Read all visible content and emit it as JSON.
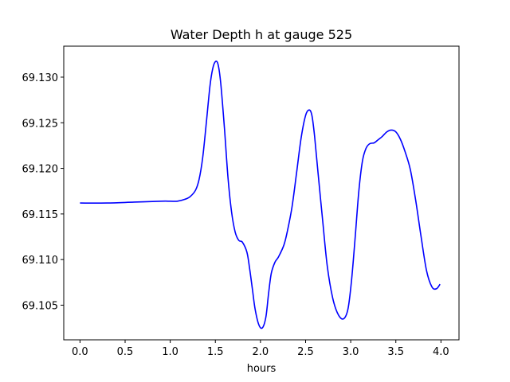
{
  "chart_data": {
    "type": "line",
    "title": "Water Depth h at gauge 525",
    "xlabel": "hours",
    "ylabel": "",
    "xlim": [
      -0.18,
      4.2
    ],
    "ylim": [
      69.1012,
      69.1334
    ],
    "xticks": [
      0.0,
      0.5,
      1.0,
      1.5,
      2.0,
      2.5,
      3.0,
      3.5,
      4.0
    ],
    "xtick_labels": [
      "0.0",
      "0.5",
      "1.0",
      "1.5",
      "2.0",
      "2.5",
      "3.0",
      "3.5",
      "4.0"
    ],
    "yticks": [
      69.105,
      69.11,
      69.115,
      69.12,
      69.125,
      69.13
    ],
    "ytick_labels": [
      "69.105",
      "69.110",
      "69.115",
      "69.120",
      "69.125",
      "69.130"
    ],
    "grid": false,
    "series": [
      {
        "color": "#0000ff",
        "x": [
          0.0,
          0.3,
          0.6,
          0.9,
          1.0,
          1.08,
          1.16,
          1.22,
          1.28,
          1.32,
          1.36,
          1.4,
          1.44,
          1.47,
          1.5,
          1.53,
          1.56,
          1.6,
          1.64,
          1.68,
          1.72,
          1.76,
          1.8,
          1.85,
          1.88,
          1.91,
          1.94,
          1.98,
          2.02,
          2.06,
          2.09,
          2.12,
          2.16,
          2.2,
          2.26,
          2.3,
          2.35,
          2.4,
          2.45,
          2.5,
          2.54,
          2.57,
          2.6,
          2.64,
          2.69,
          2.74,
          2.8,
          2.86,
          2.92,
          2.97,
          3.01,
          3.05,
          3.09,
          3.13,
          3.17,
          3.21,
          3.26,
          3.3,
          3.35,
          3.4,
          3.45,
          3.5,
          3.55,
          3.6,
          3.66,
          3.72,
          3.78,
          3.84,
          3.9,
          3.95,
          3.99
        ],
        "y": [
          69.1162,
          69.1162,
          69.1163,
          69.1164,
          69.1164,
          69.1164,
          69.1166,
          69.1169,
          69.1176,
          69.1188,
          69.1212,
          69.125,
          69.129,
          69.1309,
          69.1317,
          69.1314,
          69.1293,
          69.1245,
          69.119,
          69.1152,
          69.113,
          69.1121,
          69.1119,
          69.1108,
          69.109,
          69.1068,
          69.1046,
          69.1029,
          69.1025,
          69.1037,
          69.1063,
          69.1085,
          69.1097,
          69.1103,
          69.1116,
          69.1132,
          69.1158,
          69.1195,
          69.1233,
          69.1258,
          69.1264,
          69.1258,
          69.1235,
          69.1193,
          69.1142,
          69.1093,
          69.1058,
          69.104,
          69.1035,
          69.1046,
          69.1078,
          69.1125,
          69.1175,
          69.1208,
          69.1222,
          69.1227,
          69.1228,
          69.1231,
          69.1235,
          69.124,
          69.1242,
          69.124,
          69.1232,
          69.1219,
          69.1199,
          69.1165,
          69.1125,
          69.1088,
          69.107,
          69.1068,
          69.1073
        ]
      }
    ]
  }
}
